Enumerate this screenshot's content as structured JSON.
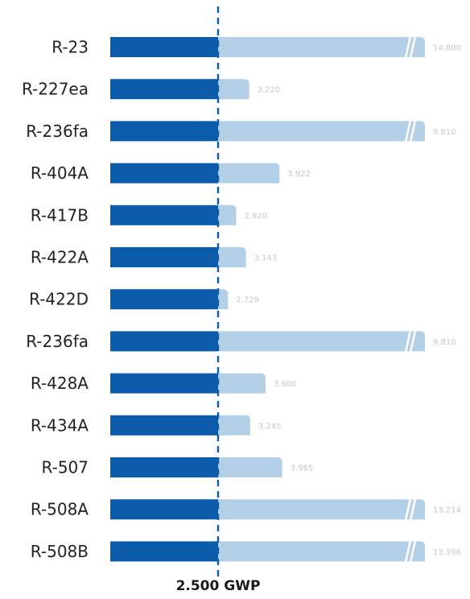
{
  "chart_data": {
    "type": "bar",
    "orientation": "horizontal",
    "categories": [
      "R-23",
      "R-227ea",
      "R-236fa",
      "R-404A",
      "R-417B",
      "R-422A",
      "R-422D",
      "R-236fa",
      "R-428A",
      "R-434A",
      "R-507",
      "R-508A",
      "R-508B"
    ],
    "values": [
      14800,
      3220,
      9810,
      3922,
      2920,
      3143,
      2729,
      9810,
      3600,
      3245,
      3985,
      13214,
      13396
    ],
    "value_labels": [
      "14.800",
      "3.220",
      "9.810",
      "3.922",
      "2.920",
      "3.143",
      "2.729",
      "9.810",
      "3.600",
      "3.245",
      "3.985",
      "13.214",
      "13.396"
    ],
    "axis_break": [
      true,
      false,
      true,
      false,
      false,
      false,
      false,
      true,
      false,
      false,
      false,
      true,
      true
    ],
    "reference_value": 2500,
    "reference_label": "2.500 GWP",
    "title": "",
    "xlabel": "",
    "ylabel": "",
    "colors": {
      "below_reference": "#0b5cab",
      "above_reference": "#b4d0e6",
      "reference_line": "#0b5cab",
      "value_label": "#c4c8cc",
      "category_label": "#222222"
    }
  }
}
